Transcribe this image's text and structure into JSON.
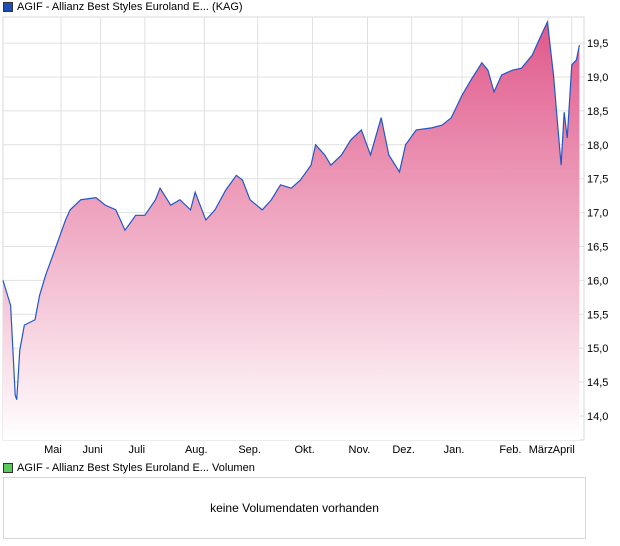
{
  "legend_price": {
    "label": "AGIF - Allianz Best Styles Euroland E... (KAG)",
    "color": "#1f4fb5"
  },
  "legend_volume": {
    "label": "AGIF - Allianz Best Styles Euroland E... Volumen",
    "color": "#5cc95c"
  },
  "volume_message": "keine Volumendaten vorhanden",
  "chart_data": {
    "type": "area",
    "title": "AGIF - Allianz Best Styles Euroland E... (KAG)",
    "xlabel": "",
    "ylabel": "",
    "ylim": [
      13.7,
      19.9
    ],
    "yticks": [
      14.0,
      14.5,
      15.0,
      15.5,
      16.0,
      16.5,
      17.0,
      17.5,
      18.0,
      18.5,
      19.0,
      19.5
    ],
    "ytick_labels": [
      "14,0",
      "14,5",
      "15,0",
      "15,5",
      "16,0",
      "16,5",
      "17,0",
      "17,5",
      "18,0",
      "18,5",
      "19,0",
      "19,5"
    ],
    "x_unit": "days since start",
    "xlim": [
      0,
      381
    ],
    "months": [
      {
        "label": "Mai",
        "x": 38
      },
      {
        "label": "Juni",
        "x": 64
      },
      {
        "label": "Juli",
        "x": 93
      },
      {
        "label": "Aug.",
        "x": 132
      },
      {
        "label": "Sep.",
        "x": 167
      },
      {
        "label": "Okt.",
        "x": 203
      },
      {
        "label": "Nov.",
        "x": 239
      },
      {
        "label": "Dez.",
        "x": 268
      },
      {
        "label": "Jan.",
        "x": 301
      },
      {
        "label": "Feb.",
        "x": 338
      },
      {
        "label": "März",
        "x": 358
      },
      {
        "label": "April",
        "x": 373
      }
    ],
    "x": [
      0,
      5,
      8,
      9,
      11,
      14,
      21,
      24,
      28,
      34,
      41,
      44,
      51,
      61,
      67,
      74,
      80,
      87,
      93,
      100,
      103,
      110,
      116,
      123,
      126,
      133,
      139,
      146,
      153,
      157,
      162,
      170,
      176,
      182,
      189,
      195,
      202,
      205,
      211,
      215,
      222,
      228,
      235,
      241,
      248,
      253,
      260,
      264,
      271,
      281,
      288,
      294,
      301,
      307,
      314,
      318,
      322,
      327,
      334,
      340,
      347,
      353,
      357,
      361,
      364,
      366,
      368,
      370,
      373,
      376,
      378
    ],
    "values": [
      16.0,
      15.63,
      14.31,
      14.24,
      14.97,
      15.34,
      15.42,
      15.78,
      16.08,
      16.45,
      16.89,
      17.04,
      17.19,
      17.22,
      17.11,
      17.04,
      16.74,
      16.96,
      16.96,
      17.19,
      17.36,
      17.11,
      17.19,
      17.04,
      17.3,
      16.89,
      17.04,
      17.33,
      17.55,
      17.48,
      17.19,
      17.04,
      17.19,
      17.41,
      17.36,
      17.48,
      17.7,
      18.0,
      17.85,
      17.7,
      17.85,
      18.07,
      18.22,
      17.85,
      18.4,
      17.85,
      17.6,
      18.0,
      18.22,
      18.25,
      18.29,
      18.4,
      18.73,
      18.96,
      19.21,
      19.1,
      18.78,
      19.03,
      19.1,
      19.13,
      19.32,
      19.62,
      19.81,
      19.03,
      18.22,
      17.7,
      18.48,
      18.1,
      19.18,
      19.25,
      19.47
    ],
    "line_color": "#2457c5",
    "fill_top": "#e0588a",
    "fill_bottom": "#ffffff",
    "grid": true
  }
}
